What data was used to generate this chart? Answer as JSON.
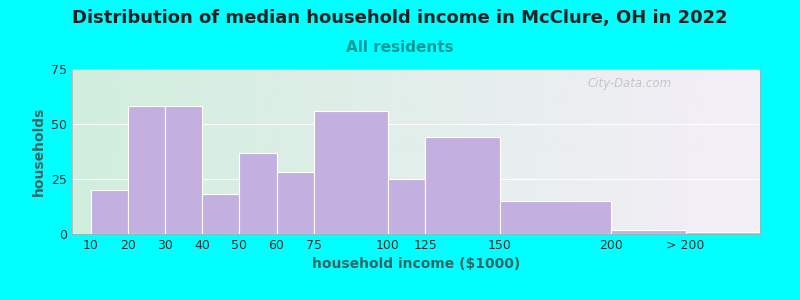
{
  "title": "Distribution of median household income in McClure, OH in 2022",
  "subtitle": "All residents",
  "xlabel": "household income ($1000)",
  "ylabel": "households",
  "background_color": "#00FFFF",
  "plot_bg_left": "#d0eedd",
  "plot_bg_right": "#f5eef8",
  "bar_color": "#c4b0e0",
  "bar_edge_color": "#ffffff",
  "categories": [
    "10",
    "20",
    "30",
    "40",
    "50",
    "60",
    "75",
    "100",
    "125",
    "150",
    "200",
    "> 200"
  ],
  "values": [
    20,
    58,
    58,
    18,
    37,
    28,
    56,
    25,
    44,
    15,
    2,
    1
  ],
  "bar_lefts": [
    0,
    1,
    2,
    3,
    4,
    5,
    6,
    8,
    9,
    11,
    14,
    16
  ],
  "bar_widths": [
    1,
    1,
    1,
    1,
    1,
    1,
    2,
    1,
    2,
    3,
    2,
    2
  ],
  "tick_positions": [
    0,
    1,
    2,
    3,
    4,
    5,
    6,
    8,
    9,
    11,
    14,
    16
  ],
  "ylim": [
    0,
    75
  ],
  "yticks": [
    0,
    25,
    50,
    75
  ],
  "title_fontsize": 13,
  "subtitle_fontsize": 11,
  "subtitle_color": "#009999",
  "axis_label_fontsize": 10,
  "tick_fontsize": 9,
  "watermark_text": "City-Data.com",
  "watermark_color": "#b0b0b0"
}
